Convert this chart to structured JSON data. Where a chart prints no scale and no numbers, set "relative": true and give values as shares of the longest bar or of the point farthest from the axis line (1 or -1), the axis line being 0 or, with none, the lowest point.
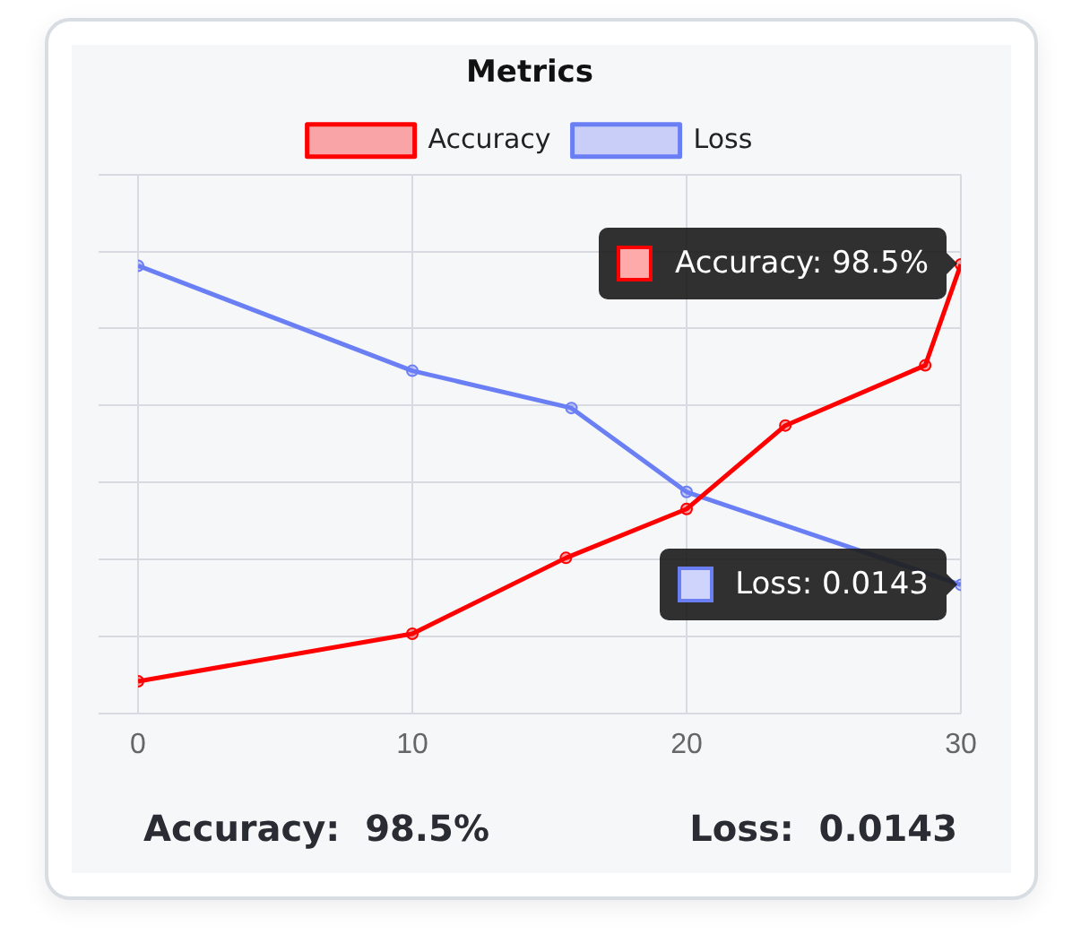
{
  "chart_data": {
    "type": "line",
    "title": "Metrics",
    "relative": true,
    "xlim": [
      0,
      30
    ],
    "xticks": [
      0,
      10,
      20,
      30
    ],
    "grid": true,
    "legend": "top",
    "marker": "circle",
    "line_style": "solid",
    "series": [
      {
        "name": "Accuracy",
        "color": "#ff0000",
        "x": [
          0,
          10,
          15.6,
          20,
          23.6,
          28.7,
          30
        ],
        "values": [
          0.071,
          0.177,
          0.346,
          0.455,
          0.641,
          0.775,
          1
        ]
      },
      {
        "name": "Loss",
        "color": "#6b7ff5",
        "x": [
          0,
          10,
          15.8,
          20,
          30
        ],
        "values": [
          0.997,
          0.763,
          0.68,
          0.493,
          0.286
        ]
      }
    ],
    "annotations": [
      {
        "text": "Accuracy: 98.5%",
        "x": 30,
        "y": 1
      },
      {
        "text": "Loss: 0.0143",
        "x": 30,
        "y": 0.286
      },
      "Accuracy:  98.5%",
      "Loss:  0.0143"
    ]
  }
}
